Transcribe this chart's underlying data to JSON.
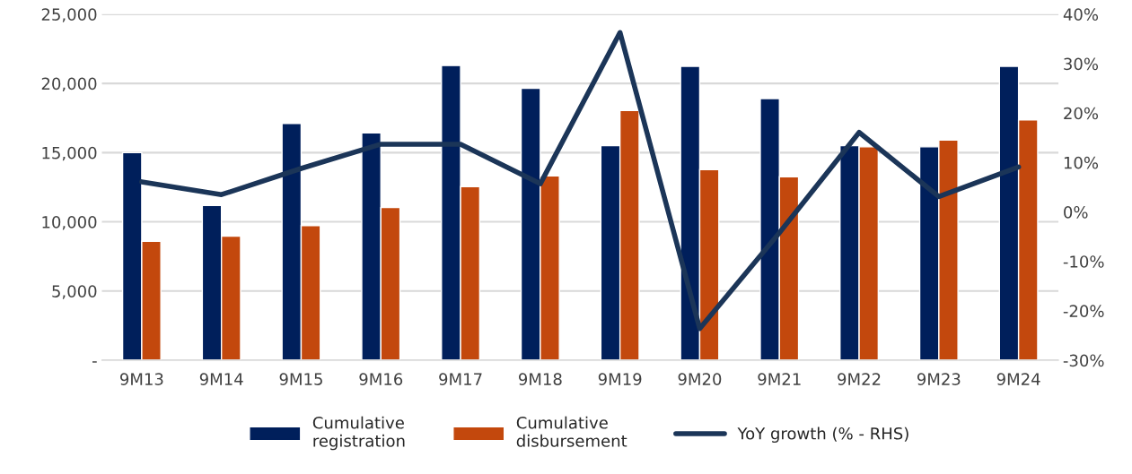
{
  "chart_data": {
    "type": "bar",
    "categories": [
      "9M13",
      "9M14",
      "9M15",
      "9M16",
      "9M17",
      "9M18",
      "9M19",
      "9M20",
      "9M21",
      "9M22",
      "9M23",
      "9M24"
    ],
    "series": [
      {
        "name": "Cumulative\nregistration",
        "color": "#001f5b",
        "values": [
          15000,
          11190,
          17110,
          16420,
          21290,
          19640,
          15500,
          21230,
          18910,
          15500,
          15420,
          21230
        ]
      },
      {
        "name": "Cumulative\ndisbursement",
        "color": "#c3480d",
        "values": [
          8600,
          8960,
          9730,
          11030,
          12550,
          13320,
          18040,
          13780,
          13260,
          15420,
          15910,
          17360
        ]
      },
      {
        "name": "YoY growth (% - RHS)",
        "type": "line",
        "axis": "y2",
        "color": "#1b3558",
        "values": [
          6.1,
          3.5,
          8.8,
          13.7,
          13.7,
          5.7,
          36.3,
          -23.6,
          -4.2,
          16.1,
          3.1,
          9.1
        ]
      }
    ],
    "ylim": [
      0,
      25000
    ],
    "yticks": [
      {
        "value": 0,
        "label": "-"
      },
      {
        "value": 5000,
        "label": "5,000"
      },
      {
        "value": 10000,
        "label": "10,000"
      },
      {
        "value": 15000,
        "label": "15,000"
      },
      {
        "value": 20000,
        "label": "20,000"
      },
      {
        "value": 25000,
        "label": "25,000"
      }
    ],
    "y2lim": [
      -30,
      40
    ],
    "y2ticks": [
      {
        "value": -30,
        "label": "-30%"
      },
      {
        "value": -20,
        "label": "-20%"
      },
      {
        "value": -10,
        "label": "-10%"
      },
      {
        "value": 0,
        "label": "0%"
      },
      {
        "value": 10,
        "label": "10%"
      },
      {
        "value": 20,
        "label": "20%"
      },
      {
        "value": 30,
        "label": "30%"
      },
      {
        "value": 40,
        "label": "40%"
      }
    ],
    "grid": "y",
    "legend": "bottom"
  }
}
